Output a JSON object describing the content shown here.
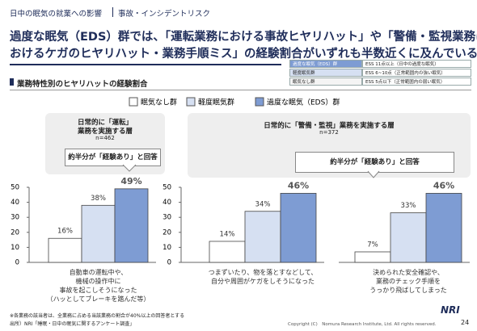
{
  "header": {
    "breadcrumb": "日中の眠気の就業への影響",
    "section": "事故・インシデントリスク",
    "headline": [
      "過度な眠気（EDS）群では、「運転業務における事故ヒヤリハット」や「警備・監視業務に",
      "おけるケガのヒヤリハット・業務手順ミス」の経験割合がいずれも半数近くに及んでいる。"
    ]
  },
  "definitions": {
    "rows": [
      [
        "過度な眠気（EDS）群",
        "ESS 11点以上（日中の過度な眠気）"
      ],
      [
        "軽度眠気群",
        "ESS 6~10点（正常範囲内の強い眠気）"
      ],
      [
        "眠気なし群",
        "ESS 5点以下（正常範囲内の弱い眠気）"
      ]
    ]
  },
  "section_title": "業務特性別のヒヤリハットの経験割合",
  "groups": [
    {
      "title": [
        "日常的に「運転」",
        "業務を実施する層"
      ],
      "n": "n=462",
      "callout": "約半分が「経験あり」と回答"
    },
    {
      "title": [
        "日常的に「警備・監視」業務を実施する層"
      ],
      "n": "n=372",
      "callout": "約半分が「経験あり」と回答"
    }
  ],
  "footer": {
    "note": "※各業務の該当者は、全業務に占める当該業務の割合が40%以上の回答者とする",
    "source": "出所）NRI「睡眠・日中の眠気に関するアンケート調査」",
    "copyright": "Copyright (C)　Nomura Research Institute, Ltd. All rights reserved.",
    "page": "24",
    "logo": "NRI"
  },
  "chart_data": [
    {
      "type": "bar",
      "ylim": [
        0,
        50
      ],
      "yticks": [
        0,
        10,
        20,
        30,
        40,
        50
      ],
      "categories": [
        "自動車の運転中や、\n機械の操作中に\n事故を起こしそうになった\n（ハッとしてブレーキを踏んだ等）"
      ],
      "series": [
        {
          "name": "眠気なし群",
          "color": "#ffffff",
          "values": [
            16
          ],
          "value_labels": [
            "16%"
          ]
        },
        {
          "name": "軽度眠気群",
          "color": "#d6e0f2",
          "values": [
            38
          ],
          "value_labels": [
            "38%"
          ]
        },
        {
          "name": "過度な眠気（EDS）群",
          "color": "#7e9cd3",
          "values": [
            49
          ],
          "value_labels": [
            "49%"
          ]
        }
      ]
    },
    {
      "type": "bar",
      "ylim": [
        0,
        50
      ],
      "yticks": [
        0,
        10,
        20,
        30,
        40,
        50
      ],
      "categories": [
        "つまずいたり、物を落とすなどして、\n自分や周囲がケガをしそうになった"
      ],
      "series": [
        {
          "name": "眠気なし群",
          "color": "#ffffff",
          "values": [
            14
          ],
          "value_labels": [
            "14%"
          ]
        },
        {
          "name": "軽度眠気群",
          "color": "#d6e0f2",
          "values": [
            34
          ],
          "value_labels": [
            "34%"
          ]
        },
        {
          "name": "過度な眠気（EDS）群",
          "color": "#7e9cd3",
          "values": [
            46
          ],
          "value_labels": [
            "46%"
          ]
        }
      ]
    },
    {
      "type": "bar",
      "ylim": [
        0,
        50
      ],
      "categories": [
        "決められた安全確認や、\n業務のチェック手順を\nうっかり飛ばしてしまった"
      ],
      "series": [
        {
          "name": "眠気なし群",
          "color": "#ffffff",
          "values": [
            7
          ],
          "value_labels": [
            "7%"
          ]
        },
        {
          "name": "軽度眠気群",
          "color": "#d6e0f2",
          "values": [
            33
          ],
          "value_labels": [
            "33%"
          ]
        },
        {
          "name": "過度な眠気（EDS）群",
          "color": "#7e9cd3",
          "values": [
            46
          ],
          "value_labels": [
            "46%"
          ]
        }
      ]
    }
  ]
}
